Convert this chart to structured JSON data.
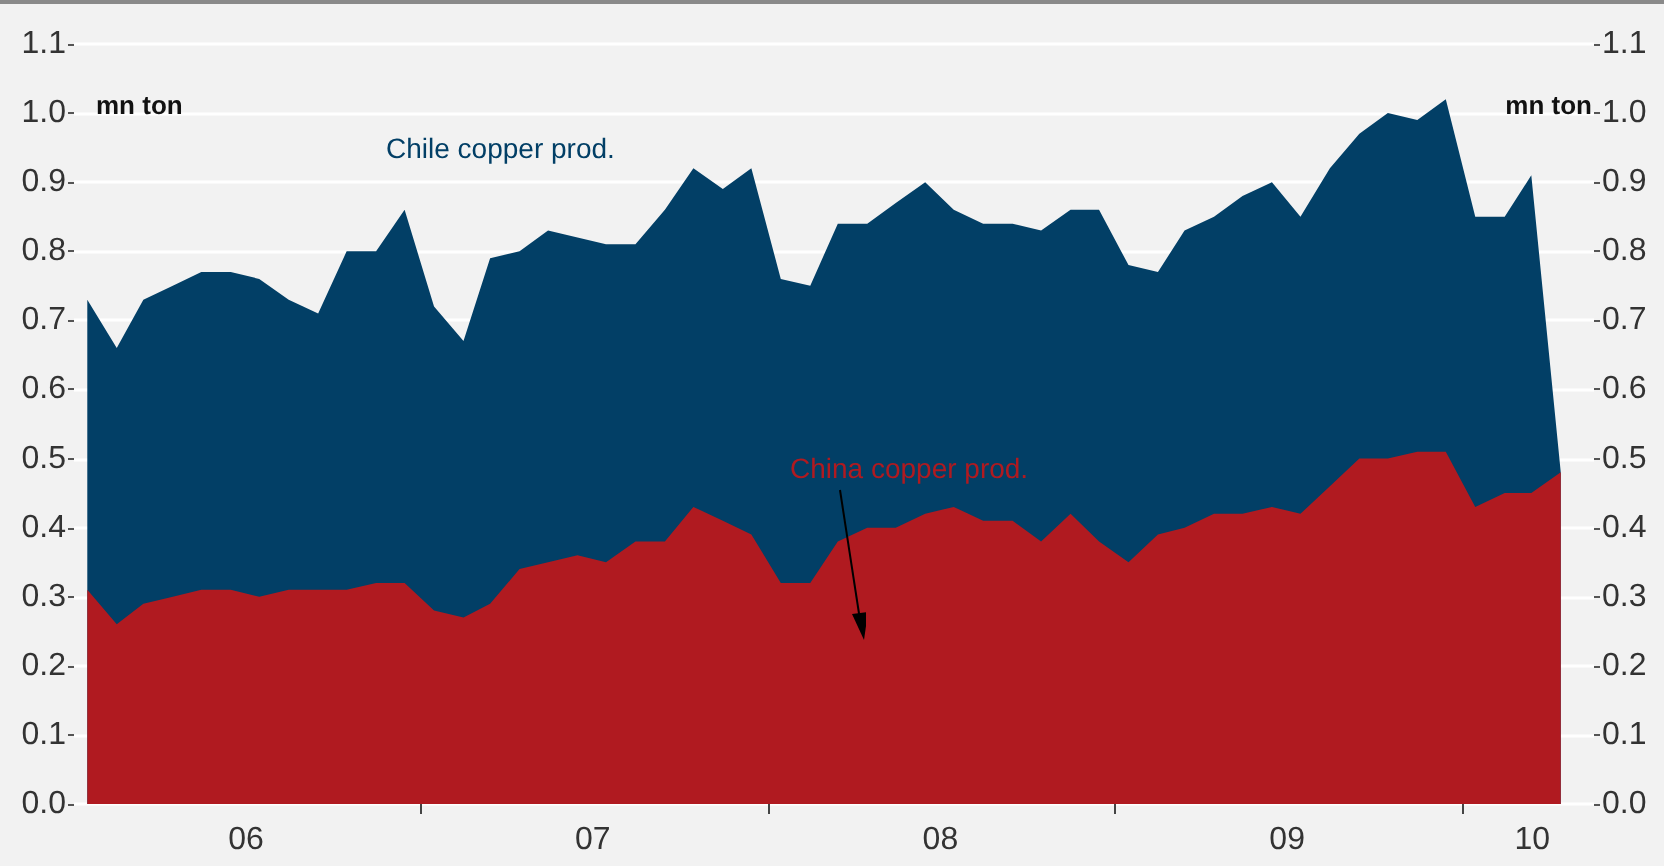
{
  "chart_data": {
    "type": "area",
    "stacked": true,
    "ylabel": "mn ton",
    "y2label": "mn ton",
    "x": [
      "2006-01-15",
      "2006-02-15",
      "2006-03-15",
      "2006-04-15",
      "2006-05-15",
      "2006-06-15",
      "2006-07-15",
      "2006-08-15",
      "2006-09-15",
      "2006-10-15",
      "2006-11-15",
      "2006-12-15",
      "2007-01-15",
      "2007-02-15",
      "2007-03-15",
      "2007-04-15",
      "2007-05-15",
      "2007-06-15",
      "2007-07-15",
      "2007-08-15",
      "2007-09-15",
      "2007-10-15",
      "2007-11-15",
      "2007-12-15",
      "2008-01-15",
      "2008-02-15",
      "2008-03-15",
      "2008-04-15",
      "2008-05-15",
      "2008-06-15",
      "2008-07-15",
      "2008-08-15",
      "2008-09-15",
      "2008-10-15",
      "2008-11-15",
      "2008-12-15",
      "2009-01-15",
      "2009-02-15",
      "2009-03-15",
      "2009-04-15",
      "2009-05-15",
      "2009-06-15",
      "2009-07-15",
      "2009-08-15",
      "2009-09-15",
      "2009-10-15",
      "2009-11-15",
      "2009-12-15",
      "2010-01-15",
      "2010-02-15",
      "2010-03-15",
      "2010-04-15"
    ],
    "series": [
      {
        "name": "China copper prod.",
        "color": "#b01a20",
        "values": [
          0.31,
          0.26,
          0.29,
          0.3,
          0.31,
          0.31,
          0.3,
          0.31,
          0.31,
          0.31,
          0.32,
          0.32,
          0.28,
          0.27,
          0.29,
          0.34,
          0.35,
          0.36,
          0.35,
          0.38,
          0.38,
          0.43,
          0.41,
          0.39,
          0.32,
          0.32,
          0.38,
          0.4,
          0.4,
          0.42,
          0.43,
          0.41,
          0.41,
          0.38,
          0.42,
          0.38,
          0.35,
          0.39,
          0.4,
          0.42,
          0.42,
          0.43,
          0.42,
          0.46,
          0.5,
          0.5,
          0.51,
          0.51,
          0.43,
          0.45,
          0.45,
          0.48
        ]
      },
      {
        "name": "Chile copper prod.",
        "color": "#023f66",
        "values": [
          0.42,
          0.4,
          0.44,
          0.45,
          0.46,
          0.46,
          0.46,
          0.42,
          0.4,
          0.49,
          0.48,
          0.54,
          0.44,
          0.4,
          0.5,
          0.46,
          0.48,
          0.46,
          0.46,
          0.43,
          0.48,
          0.49,
          0.48,
          0.53,
          0.44,
          0.43,
          0.46,
          0.44,
          0.47,
          0.48,
          0.43,
          0.43,
          0.43,
          0.45,
          0.44,
          0.48,
          0.43,
          0.38,
          0.43,
          0.43,
          0.46,
          0.47,
          0.43,
          0.46,
          0.47,
          0.5,
          0.48,
          0.51,
          0.42,
          0.4,
          0.46,
          0
        ]
      }
    ],
    "xlim": [
      "2006-01-01",
      "2010-05-20"
    ],
    "xticks": [
      {
        "value": "2006-07-01",
        "label": "06"
      },
      {
        "value": "2007-01-01",
        "label": null
      },
      {
        "value": "2007-07-01",
        "label": "07"
      },
      {
        "value": "2008-01-01",
        "label": null
      },
      {
        "value": "2008-07-01",
        "label": "08"
      },
      {
        "value": "2009-01-01",
        "label": null
      },
      {
        "value": "2009-07-01",
        "label": "09"
      },
      {
        "value": "2010-01-01",
        "label": null
      },
      {
        "value": "2010-03-16",
        "label": "10"
      }
    ],
    "ylim": [
      0,
      1.1
    ],
    "yticks": [
      {
        "value": 0,
        "label": "0.0"
      },
      0.1,
      0.2,
      0.3,
      0.4,
      0.5,
      0.6,
      0.7,
      0.8,
      0.9,
      {
        "value": 1,
        "label": "1.0"
      },
      1.1
    ],
    "y2lim": [
      0,
      1.1
    ],
    "y2ticks": [
      {
        "value": 0,
        "label": "0.0"
      },
      0.1,
      0.2,
      0.3,
      0.4,
      0.5,
      0.6,
      0.7,
      0.8,
      0.9,
      {
        "value": 1,
        "label": "1.0"
      },
      1.1
    ],
    "grid": "y"
  }
}
